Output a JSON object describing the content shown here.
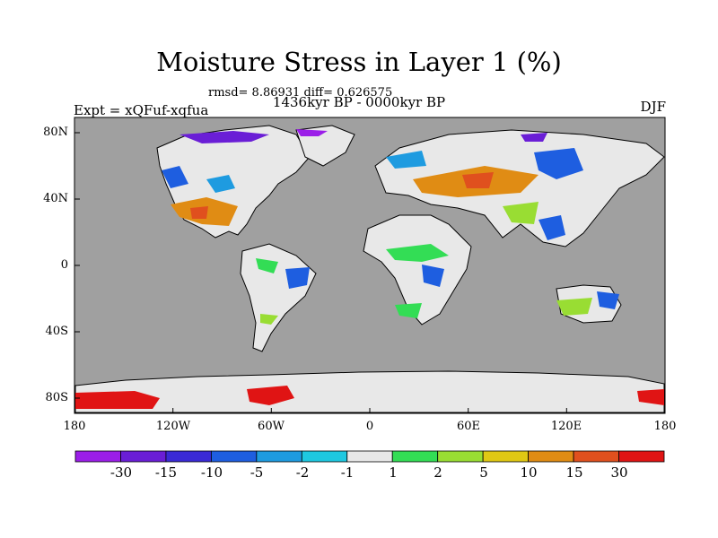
{
  "title": "Moisture Stress in Layer 1 (%)",
  "stats": "rmsd= 8.86931  diff= 0.626575",
  "period": "1436kyr BP - 0000kyr BP",
  "experiment": "Expt = xQFuf-xqfua",
  "season": "DJF",
  "map": {
    "ocean_color": "#a0a0a0",
    "land_color": "#e8e8e8",
    "lon_range": [
      -180,
      180
    ],
    "lat_range": [
      -90,
      90
    ],
    "x_ticks": [
      "180",
      "120W",
      "60W",
      "0",
      "60E",
      "120E",
      "180"
    ],
    "y_ticks": [
      "80N",
      "40N",
      "0",
      "40S",
      "80S"
    ]
  },
  "colorbar": {
    "labels": [
      "-30",
      "-15",
      "-10",
      "-5",
      "-2",
      "-1",
      "1",
      "2",
      "5",
      "10",
      "15",
      "30"
    ],
    "colors": [
      "#9b1ee8",
      "#6a1ed6",
      "#3a2ad6",
      "#1e5ee0",
      "#1e9be0",
      "#1ec8e0",
      "#e8e8e8",
      "#33dd55",
      "#99dd33",
      "#e0c814",
      "#e08c14",
      "#e0501e",
      "#e01414"
    ]
  }
}
